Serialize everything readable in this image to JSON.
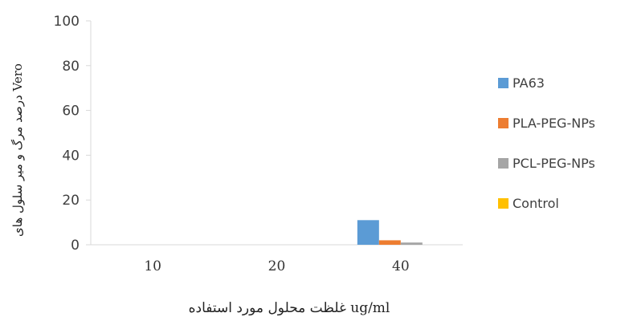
{
  "chart_data": {
    "type": "bar",
    "categories": [
      "10",
      "20",
      "40"
    ],
    "series": [
      {
        "name": "PA63",
        "values": [
          0,
          0,
          11
        ],
        "color": "#5b9bd5"
      },
      {
        "name": "PLA-PEG-NPs",
        "values": [
          0,
          0,
          2
        ],
        "color": "#ed7d31"
      },
      {
        "name": "PCL-PEG-NPs",
        "values": [
          0,
          0,
          1
        ],
        "color": "#a5a5a5"
      },
      {
        "name": "Control",
        "values": [
          0,
          0,
          0
        ],
        "color": "#ffc000"
      }
    ],
    "yticks": [
      "0",
      "20",
      "40",
      "60",
      "80",
      "100"
    ],
    "ylim": [
      0,
      100
    ],
    "xlabel": "غلظت محلول مورد استفاده ug/ml",
    "ylabel": "درصد مرگ و میر سلول های Vero",
    "grid": false,
    "legend_position": "right"
  }
}
